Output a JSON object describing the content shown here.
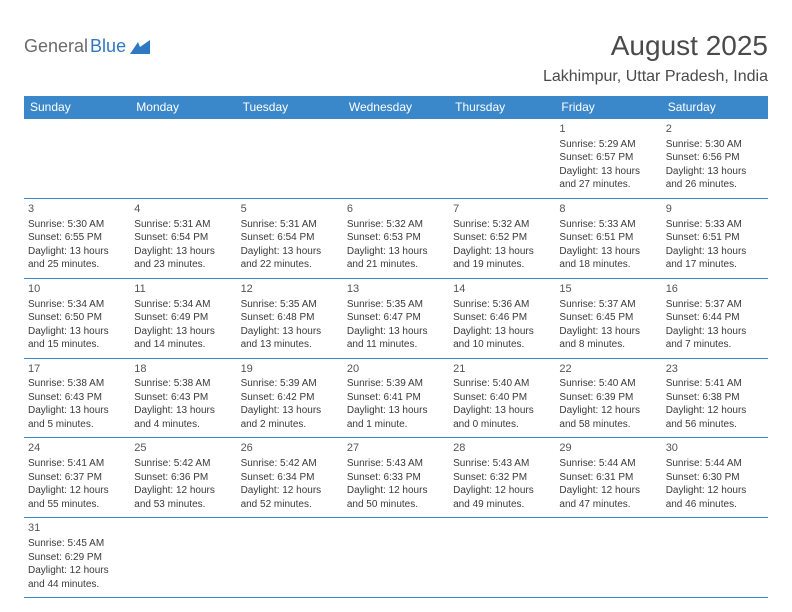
{
  "logo": {
    "part1": "General",
    "part2": "Blue"
  },
  "title": "August 2025",
  "location": "Lakhimpur, Uttar Pradesh, India",
  "colors": {
    "header_bg": "#3a87c9",
    "header_text": "#ffffff",
    "cell_border": "#3a87c9",
    "body_text": "#3a3a3a",
    "title_text": "#4a4a4a",
    "logo_gray": "#6b6b6b",
    "logo_blue": "#2f78c2",
    "background": "#ffffff"
  },
  "typography": {
    "title_fontsize": 28,
    "location_fontsize": 16,
    "header_fontsize": 12,
    "daynum_fontsize": 11,
    "cell_fontsize": 10,
    "font_family": "Arial"
  },
  "weekdays": [
    "Sunday",
    "Monday",
    "Tuesday",
    "Wednesday",
    "Thursday",
    "Friday",
    "Saturday"
  ],
  "weeks": [
    [
      null,
      null,
      null,
      null,
      null,
      {
        "day": "1",
        "sunrise": "Sunrise: 5:29 AM",
        "sunset": "Sunset: 6:57 PM",
        "daylight": "Daylight: 13 hours and 27 minutes."
      },
      {
        "day": "2",
        "sunrise": "Sunrise: 5:30 AM",
        "sunset": "Sunset: 6:56 PM",
        "daylight": "Daylight: 13 hours and 26 minutes."
      }
    ],
    [
      {
        "day": "3",
        "sunrise": "Sunrise: 5:30 AM",
        "sunset": "Sunset: 6:55 PM",
        "daylight": "Daylight: 13 hours and 25 minutes."
      },
      {
        "day": "4",
        "sunrise": "Sunrise: 5:31 AM",
        "sunset": "Sunset: 6:54 PM",
        "daylight": "Daylight: 13 hours and 23 minutes."
      },
      {
        "day": "5",
        "sunrise": "Sunrise: 5:31 AM",
        "sunset": "Sunset: 6:54 PM",
        "daylight": "Daylight: 13 hours and 22 minutes."
      },
      {
        "day": "6",
        "sunrise": "Sunrise: 5:32 AM",
        "sunset": "Sunset: 6:53 PM",
        "daylight": "Daylight: 13 hours and 21 minutes."
      },
      {
        "day": "7",
        "sunrise": "Sunrise: 5:32 AM",
        "sunset": "Sunset: 6:52 PM",
        "daylight": "Daylight: 13 hours and 19 minutes."
      },
      {
        "day": "8",
        "sunrise": "Sunrise: 5:33 AM",
        "sunset": "Sunset: 6:51 PM",
        "daylight": "Daylight: 13 hours and 18 minutes."
      },
      {
        "day": "9",
        "sunrise": "Sunrise: 5:33 AM",
        "sunset": "Sunset: 6:51 PM",
        "daylight": "Daylight: 13 hours and 17 minutes."
      }
    ],
    [
      {
        "day": "10",
        "sunrise": "Sunrise: 5:34 AM",
        "sunset": "Sunset: 6:50 PM",
        "daylight": "Daylight: 13 hours and 15 minutes."
      },
      {
        "day": "11",
        "sunrise": "Sunrise: 5:34 AM",
        "sunset": "Sunset: 6:49 PM",
        "daylight": "Daylight: 13 hours and 14 minutes."
      },
      {
        "day": "12",
        "sunrise": "Sunrise: 5:35 AM",
        "sunset": "Sunset: 6:48 PM",
        "daylight": "Daylight: 13 hours and 13 minutes."
      },
      {
        "day": "13",
        "sunrise": "Sunrise: 5:35 AM",
        "sunset": "Sunset: 6:47 PM",
        "daylight": "Daylight: 13 hours and 11 minutes."
      },
      {
        "day": "14",
        "sunrise": "Sunrise: 5:36 AM",
        "sunset": "Sunset: 6:46 PM",
        "daylight": "Daylight: 13 hours and 10 minutes."
      },
      {
        "day": "15",
        "sunrise": "Sunrise: 5:37 AM",
        "sunset": "Sunset: 6:45 PM",
        "daylight": "Daylight: 13 hours and 8 minutes."
      },
      {
        "day": "16",
        "sunrise": "Sunrise: 5:37 AM",
        "sunset": "Sunset: 6:44 PM",
        "daylight": "Daylight: 13 hours and 7 minutes."
      }
    ],
    [
      {
        "day": "17",
        "sunrise": "Sunrise: 5:38 AM",
        "sunset": "Sunset: 6:43 PM",
        "daylight": "Daylight: 13 hours and 5 minutes."
      },
      {
        "day": "18",
        "sunrise": "Sunrise: 5:38 AM",
        "sunset": "Sunset: 6:43 PM",
        "daylight": "Daylight: 13 hours and 4 minutes."
      },
      {
        "day": "19",
        "sunrise": "Sunrise: 5:39 AM",
        "sunset": "Sunset: 6:42 PM",
        "daylight": "Daylight: 13 hours and 2 minutes."
      },
      {
        "day": "20",
        "sunrise": "Sunrise: 5:39 AM",
        "sunset": "Sunset: 6:41 PM",
        "daylight": "Daylight: 13 hours and 1 minute."
      },
      {
        "day": "21",
        "sunrise": "Sunrise: 5:40 AM",
        "sunset": "Sunset: 6:40 PM",
        "daylight": "Daylight: 13 hours and 0 minutes."
      },
      {
        "day": "22",
        "sunrise": "Sunrise: 5:40 AM",
        "sunset": "Sunset: 6:39 PM",
        "daylight": "Daylight: 12 hours and 58 minutes."
      },
      {
        "day": "23",
        "sunrise": "Sunrise: 5:41 AM",
        "sunset": "Sunset: 6:38 PM",
        "daylight": "Daylight: 12 hours and 56 minutes."
      }
    ],
    [
      {
        "day": "24",
        "sunrise": "Sunrise: 5:41 AM",
        "sunset": "Sunset: 6:37 PM",
        "daylight": "Daylight: 12 hours and 55 minutes."
      },
      {
        "day": "25",
        "sunrise": "Sunrise: 5:42 AM",
        "sunset": "Sunset: 6:36 PM",
        "daylight": "Daylight: 12 hours and 53 minutes."
      },
      {
        "day": "26",
        "sunrise": "Sunrise: 5:42 AM",
        "sunset": "Sunset: 6:34 PM",
        "daylight": "Daylight: 12 hours and 52 minutes."
      },
      {
        "day": "27",
        "sunrise": "Sunrise: 5:43 AM",
        "sunset": "Sunset: 6:33 PM",
        "daylight": "Daylight: 12 hours and 50 minutes."
      },
      {
        "day": "28",
        "sunrise": "Sunrise: 5:43 AM",
        "sunset": "Sunset: 6:32 PM",
        "daylight": "Daylight: 12 hours and 49 minutes."
      },
      {
        "day": "29",
        "sunrise": "Sunrise: 5:44 AM",
        "sunset": "Sunset: 6:31 PM",
        "daylight": "Daylight: 12 hours and 47 minutes."
      },
      {
        "day": "30",
        "sunrise": "Sunrise: 5:44 AM",
        "sunset": "Sunset: 6:30 PM",
        "daylight": "Daylight: 12 hours and 46 minutes."
      }
    ],
    [
      {
        "day": "31",
        "sunrise": "Sunrise: 5:45 AM",
        "sunset": "Sunset: 6:29 PM",
        "daylight": "Daylight: 12 hours and 44 minutes."
      },
      null,
      null,
      null,
      null,
      null,
      null
    ]
  ]
}
